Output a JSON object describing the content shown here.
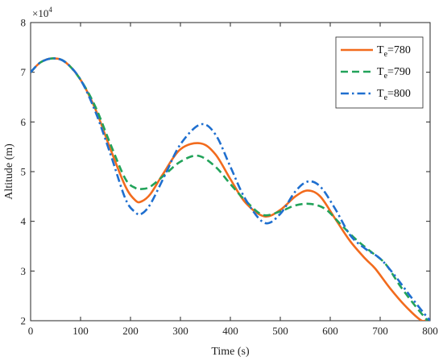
{
  "chart_data": {
    "type": "line",
    "xlabel": "Time (s)",
    "ylabel": "Altitude (m)",
    "xlim": [
      0,
      800
    ],
    "ylim": [
      2,
      8
    ],
    "y_multiplier_base": "×10",
    "y_multiplier_exp": "4",
    "x_ticks": [
      "0",
      "100",
      "200",
      "300",
      "400",
      "500",
      "600",
      "700",
      "800"
    ],
    "y_ticks": [
      "2",
      "3",
      "4",
      "5",
      "6",
      "7",
      "8"
    ],
    "grid": false,
    "legend_position": "top-right",
    "series": [
      {
        "name_main": "T",
        "name_sub": "e",
        "name_rest": "=780",
        "color": "#f26b1d",
        "dash": "solid",
        "x": [
          0,
          20,
          45,
          70,
          100,
          130,
          160,
          190,
          210,
          222,
          240,
          265,
          300,
          340,
          370,
          400,
          430,
          468,
          500,
          530,
          555,
          580,
          610,
          640,
          670,
          690,
          720,
          750,
          780,
          790
        ],
        "y": [
          7.0,
          7.2,
          7.28,
          7.2,
          6.85,
          6.25,
          5.45,
          4.7,
          4.42,
          4.4,
          4.55,
          4.95,
          5.45,
          5.57,
          5.35,
          4.85,
          4.38,
          4.1,
          4.23,
          4.5,
          4.62,
          4.5,
          4.05,
          3.6,
          3.25,
          3.05,
          2.65,
          2.3,
          2.02,
          2.0
        ]
      },
      {
        "name_main": "T",
        "name_sub": "e",
        "name_rest": "=790",
        "color": "#22a35a",
        "dash": "dashed",
        "x": [
          0,
          20,
          45,
          70,
          100,
          130,
          160,
          190,
          210,
          222,
          240,
          270,
          300,
          335,
          370,
          400,
          430,
          465,
          500,
          530,
          560,
          590,
          620,
          650,
          680,
          710,
          740,
          770,
          795
        ],
        "y": [
          7.0,
          7.2,
          7.28,
          7.2,
          6.85,
          6.3,
          5.55,
          4.85,
          4.67,
          4.65,
          4.7,
          4.95,
          5.2,
          5.32,
          5.1,
          4.75,
          4.42,
          4.13,
          4.2,
          4.32,
          4.35,
          4.25,
          3.95,
          3.65,
          3.4,
          3.15,
          2.7,
          2.3,
          2.0
        ]
      },
      {
        "name_main": "T",
        "name_sub": "e",
        "name_rest": "=800",
        "color": "#1f6fcf",
        "dash": "dashdot",
        "x": [
          0,
          20,
          45,
          70,
          100,
          130,
          160,
          190,
          210,
          222,
          240,
          270,
          300,
          340,
          370,
          400,
          430,
          468,
          500,
          530,
          555,
          580,
          610,
          640,
          670,
          700,
          730,
          760,
          790,
          800
        ],
        "y": [
          7.0,
          7.2,
          7.28,
          7.2,
          6.85,
          6.2,
          5.35,
          4.45,
          4.18,
          4.15,
          4.35,
          4.95,
          5.55,
          5.95,
          5.75,
          5.1,
          4.45,
          3.97,
          4.15,
          4.6,
          4.8,
          4.7,
          4.25,
          3.72,
          3.45,
          3.25,
          2.9,
          2.5,
          2.12,
          2.0
        ]
      }
    ]
  }
}
